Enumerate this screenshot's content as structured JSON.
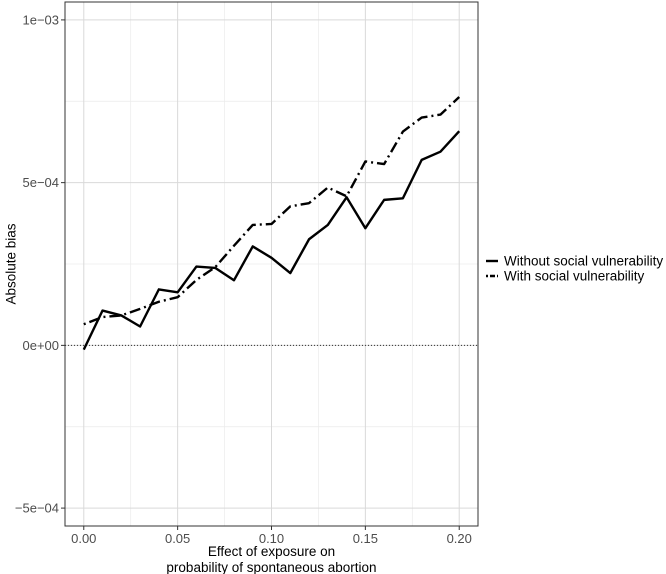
{
  "chart_data": {
    "type": "line",
    "title": "",
    "xlabel": [
      "Effect of exposure on",
      "probability of spontaneous abortion"
    ],
    "ylabel": "Absolute bias",
    "xlim": [
      -0.01,
      0.21
    ],
    "ylim": [
      -0.000555,
      0.001055
    ],
    "x_ticks": [
      0.0,
      0.05,
      0.1,
      0.15,
      0.2
    ],
    "x_tick_labels": [
      "0.00",
      "0.05",
      "0.10",
      "0.15",
      "0.20"
    ],
    "y_ticks": [
      -0.0005,
      0.0,
      0.0005,
      0.001
    ],
    "y_tick_labels": [
      "−5e−04",
      "0e+00",
      "5e−04",
      "1e−03"
    ],
    "grid": true,
    "reference_line": {
      "y": 0,
      "style": "dotted"
    },
    "legend_position": "right",
    "x": [
      0.0,
      0.01,
      0.02,
      0.03,
      0.04,
      0.05,
      0.06,
      0.07,
      0.08,
      0.09,
      0.1,
      0.11,
      0.12,
      0.13,
      0.14,
      0.15,
      0.16,
      0.17,
      0.18,
      0.19,
      0.2
    ],
    "series": [
      {
        "name": "Without social vulnerability",
        "style": "solid",
        "color": "#000000",
        "values": [
          -1.3e-05,
          0.000107,
          9.2e-05,
          5.8e-05,
          0.000172,
          0.000163,
          0.000242,
          0.000238,
          0.0002,
          0.000304,
          0.000269,
          0.000222,
          0.000326,
          0.00037,
          0.000455,
          0.00036,
          0.000447,
          0.000452,
          0.00057,
          0.000595,
          0.000658
        ]
      },
      {
        "name": "With social vulnerability",
        "style": "dotdash",
        "color": "#000000",
        "values": [
          6.5e-05,
          8.7e-05,
          9.2e-05,
          0.000112,
          0.000134,
          0.000148,
          0.000201,
          0.00024,
          0.000306,
          0.00037,
          0.000373,
          0.000427,
          0.000437,
          0.000485,
          0.000458,
          0.000565,
          0.000557,
          0.000657,
          0.0007,
          0.000709,
          0.000763
        ]
      }
    ]
  }
}
